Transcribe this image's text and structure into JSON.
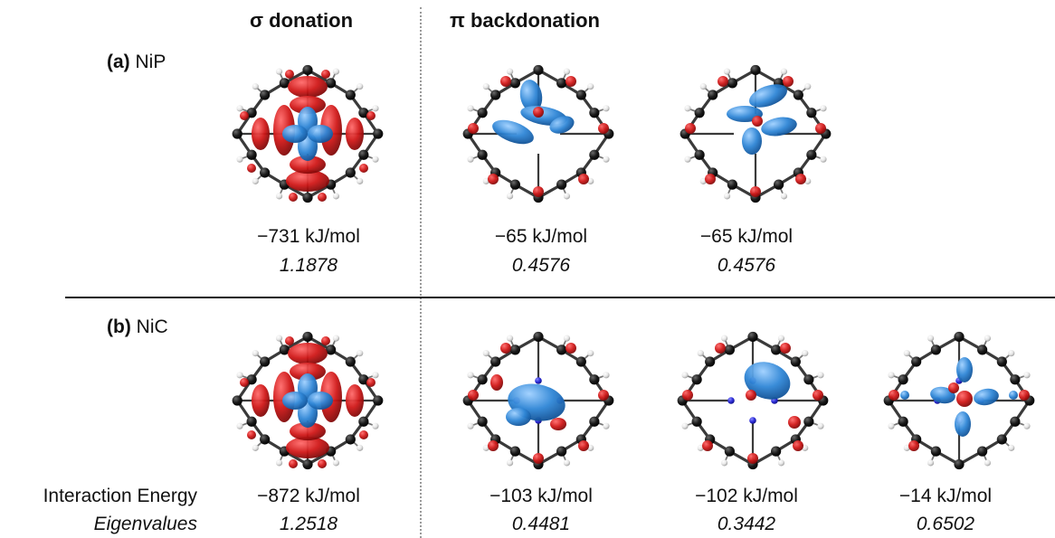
{
  "headers": {
    "sigma": "σ donation",
    "pi": "π backdonation"
  },
  "rows": [
    {
      "label_bold": "(a)",
      "label_text": "NiP",
      "panels": [
        {
          "energy": "−731 kJ/mol",
          "eigenvalue": "1.1878",
          "kind": "sigma"
        },
        {
          "energy": "−65 kJ/mol",
          "eigenvalue": "0.4576",
          "kind": "pi-a"
        },
        {
          "energy": "−65 kJ/mol",
          "eigenvalue": "0.4576",
          "kind": "pi-b"
        }
      ]
    },
    {
      "label_bold": "(b)",
      "label_text": "NiC",
      "panels": [
        {
          "energy": "−872 kJ/mol",
          "eigenvalue": "1.2518",
          "kind": "sigma"
        },
        {
          "energy": "−103 kJ/mol",
          "eigenvalue": "0.4481",
          "kind": "pi-c"
        },
        {
          "energy": "−102 kJ/mol",
          "eigenvalue": "0.3442",
          "kind": "pi-d"
        },
        {
          "energy": "−14 kJ/mol",
          "eigenvalue": "0.6502",
          "kind": "pi-e"
        }
      ]
    }
  ],
  "side_labels": {
    "energy": "Interaction Energy",
    "eigen": "Eigenvalues"
  },
  "colors": {
    "positive_lobe": "#d01818",
    "negative_lobe": "#2f86d6",
    "carbon": "#1a1a1a",
    "hydrogen": "#e6e6e6",
    "nitrogen": "#2b2bd6"
  }
}
